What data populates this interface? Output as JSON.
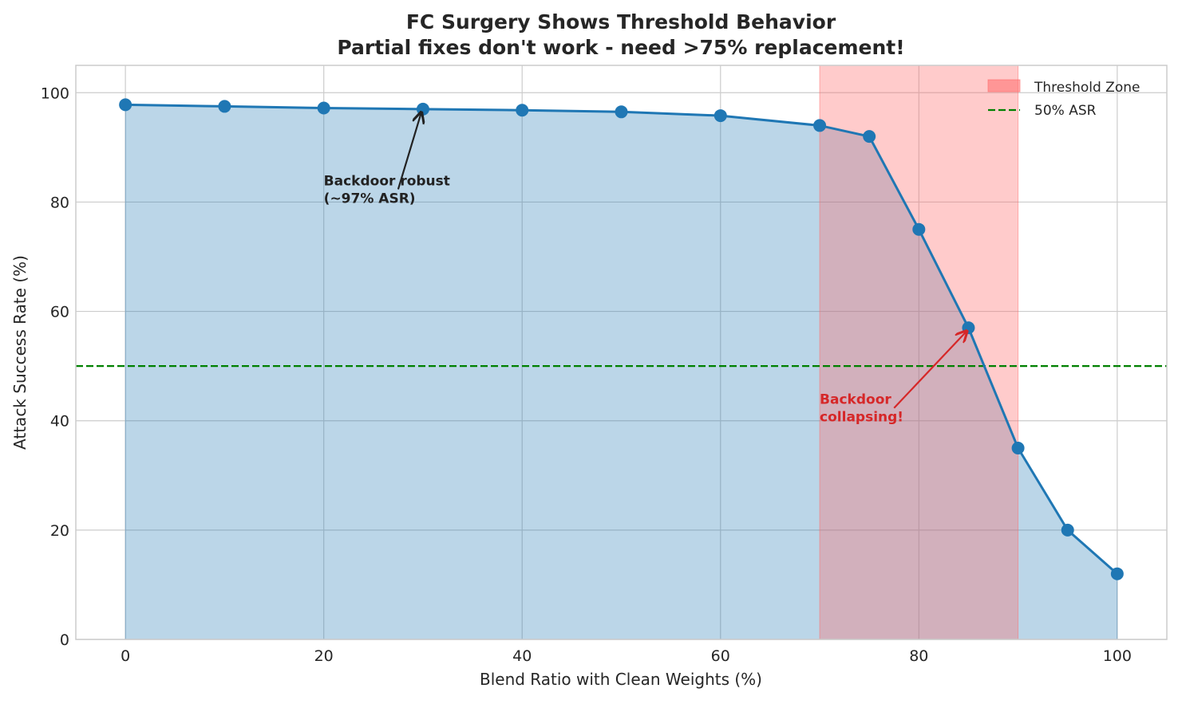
{
  "chart_data": {
    "type": "line",
    "title": "FC Surgery Shows Threshold Behavior",
    "subtitle": "Partial fixes don't work - need >75% replacement!",
    "xlabel": "Blend Ratio with Clean Weights (%)",
    "ylabel": "Attack Success Rate (%)",
    "xlim": [
      -5,
      105
    ],
    "ylim": [
      0,
      105
    ],
    "xticks": [
      0,
      20,
      40,
      60,
      80,
      100
    ],
    "yticks": [
      0,
      20,
      40,
      60,
      80,
      100
    ],
    "grid": true,
    "legend_position": "top-right",
    "x": [
      0,
      10,
      20,
      30,
      40,
      50,
      60,
      70,
      75,
      80,
      85,
      90,
      95,
      100
    ],
    "series": [
      {
        "values": [
          97.8,
          97.5,
          97.2,
          97.0,
          96.8,
          96.5,
          95.8,
          94.0,
          92.0,
          75.0,
          57.0,
          35.0,
          20.0,
          12.0
        ],
        "color": "#1f77b4",
        "fill": true
      }
    ],
    "threshold_zone": {
      "name": "Threshold Zone",
      "x0": 70,
      "x1": 90,
      "color": "#ff6b6b"
    },
    "reference_line": {
      "name": "50% ASR",
      "y": 50,
      "color": "#008000",
      "style": "dashed"
    },
    "annotations": [
      {
        "lines": [
          "Backdoor robust",
          "(~97% ASR)"
        ],
        "text_x": 20,
        "text_y": 80,
        "arrow_to": [
          30,
          97
        ],
        "color": "#222222"
      },
      {
        "lines": [
          "Backdoor",
          "collapsing!"
        ],
        "text_x": 70,
        "text_y": 40,
        "arrow_to": [
          85,
          57
        ],
        "color": "#d62728"
      }
    ]
  }
}
